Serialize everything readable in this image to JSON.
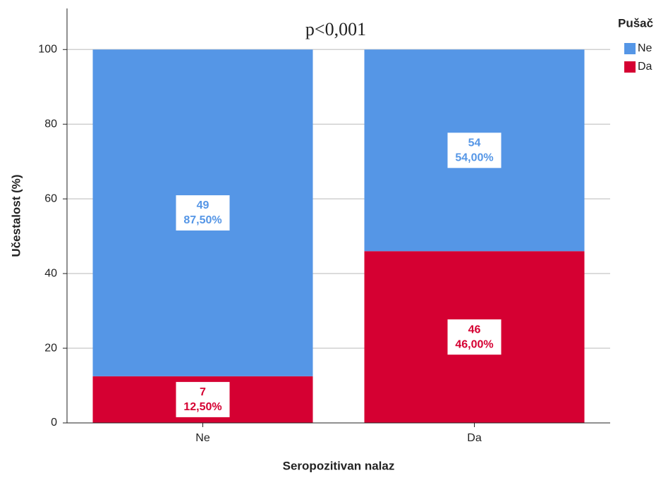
{
  "chart_data": {
    "type": "stacked_bar",
    "title": "p<0,001",
    "x_label": "Seropozitivan nalaz",
    "y_label": "Učestalost (%)",
    "categories": [
      "Ne",
      "Da"
    ],
    "series": [
      {
        "name": "Ne",
        "color": "#5596e6",
        "values": [
          87.5,
          54
        ],
        "value_labels": [
          "87,50%",
          "54,00%"
        ],
        "counts": [
          49,
          54
        ]
      },
      {
        "name": "Da",
        "color": "#d50032",
        "values": [
          12.5,
          46
        ],
        "value_labels": [
          "12,50%",
          "46,00%"
        ],
        "counts": [
          7,
          46
        ]
      }
    ],
    "legend_title": "Pušač",
    "ylim": [
      0,
      111
    ],
    "yticks": [
      0,
      20,
      40,
      60,
      80,
      100
    ],
    "grid": true,
    "legend": "right"
  }
}
